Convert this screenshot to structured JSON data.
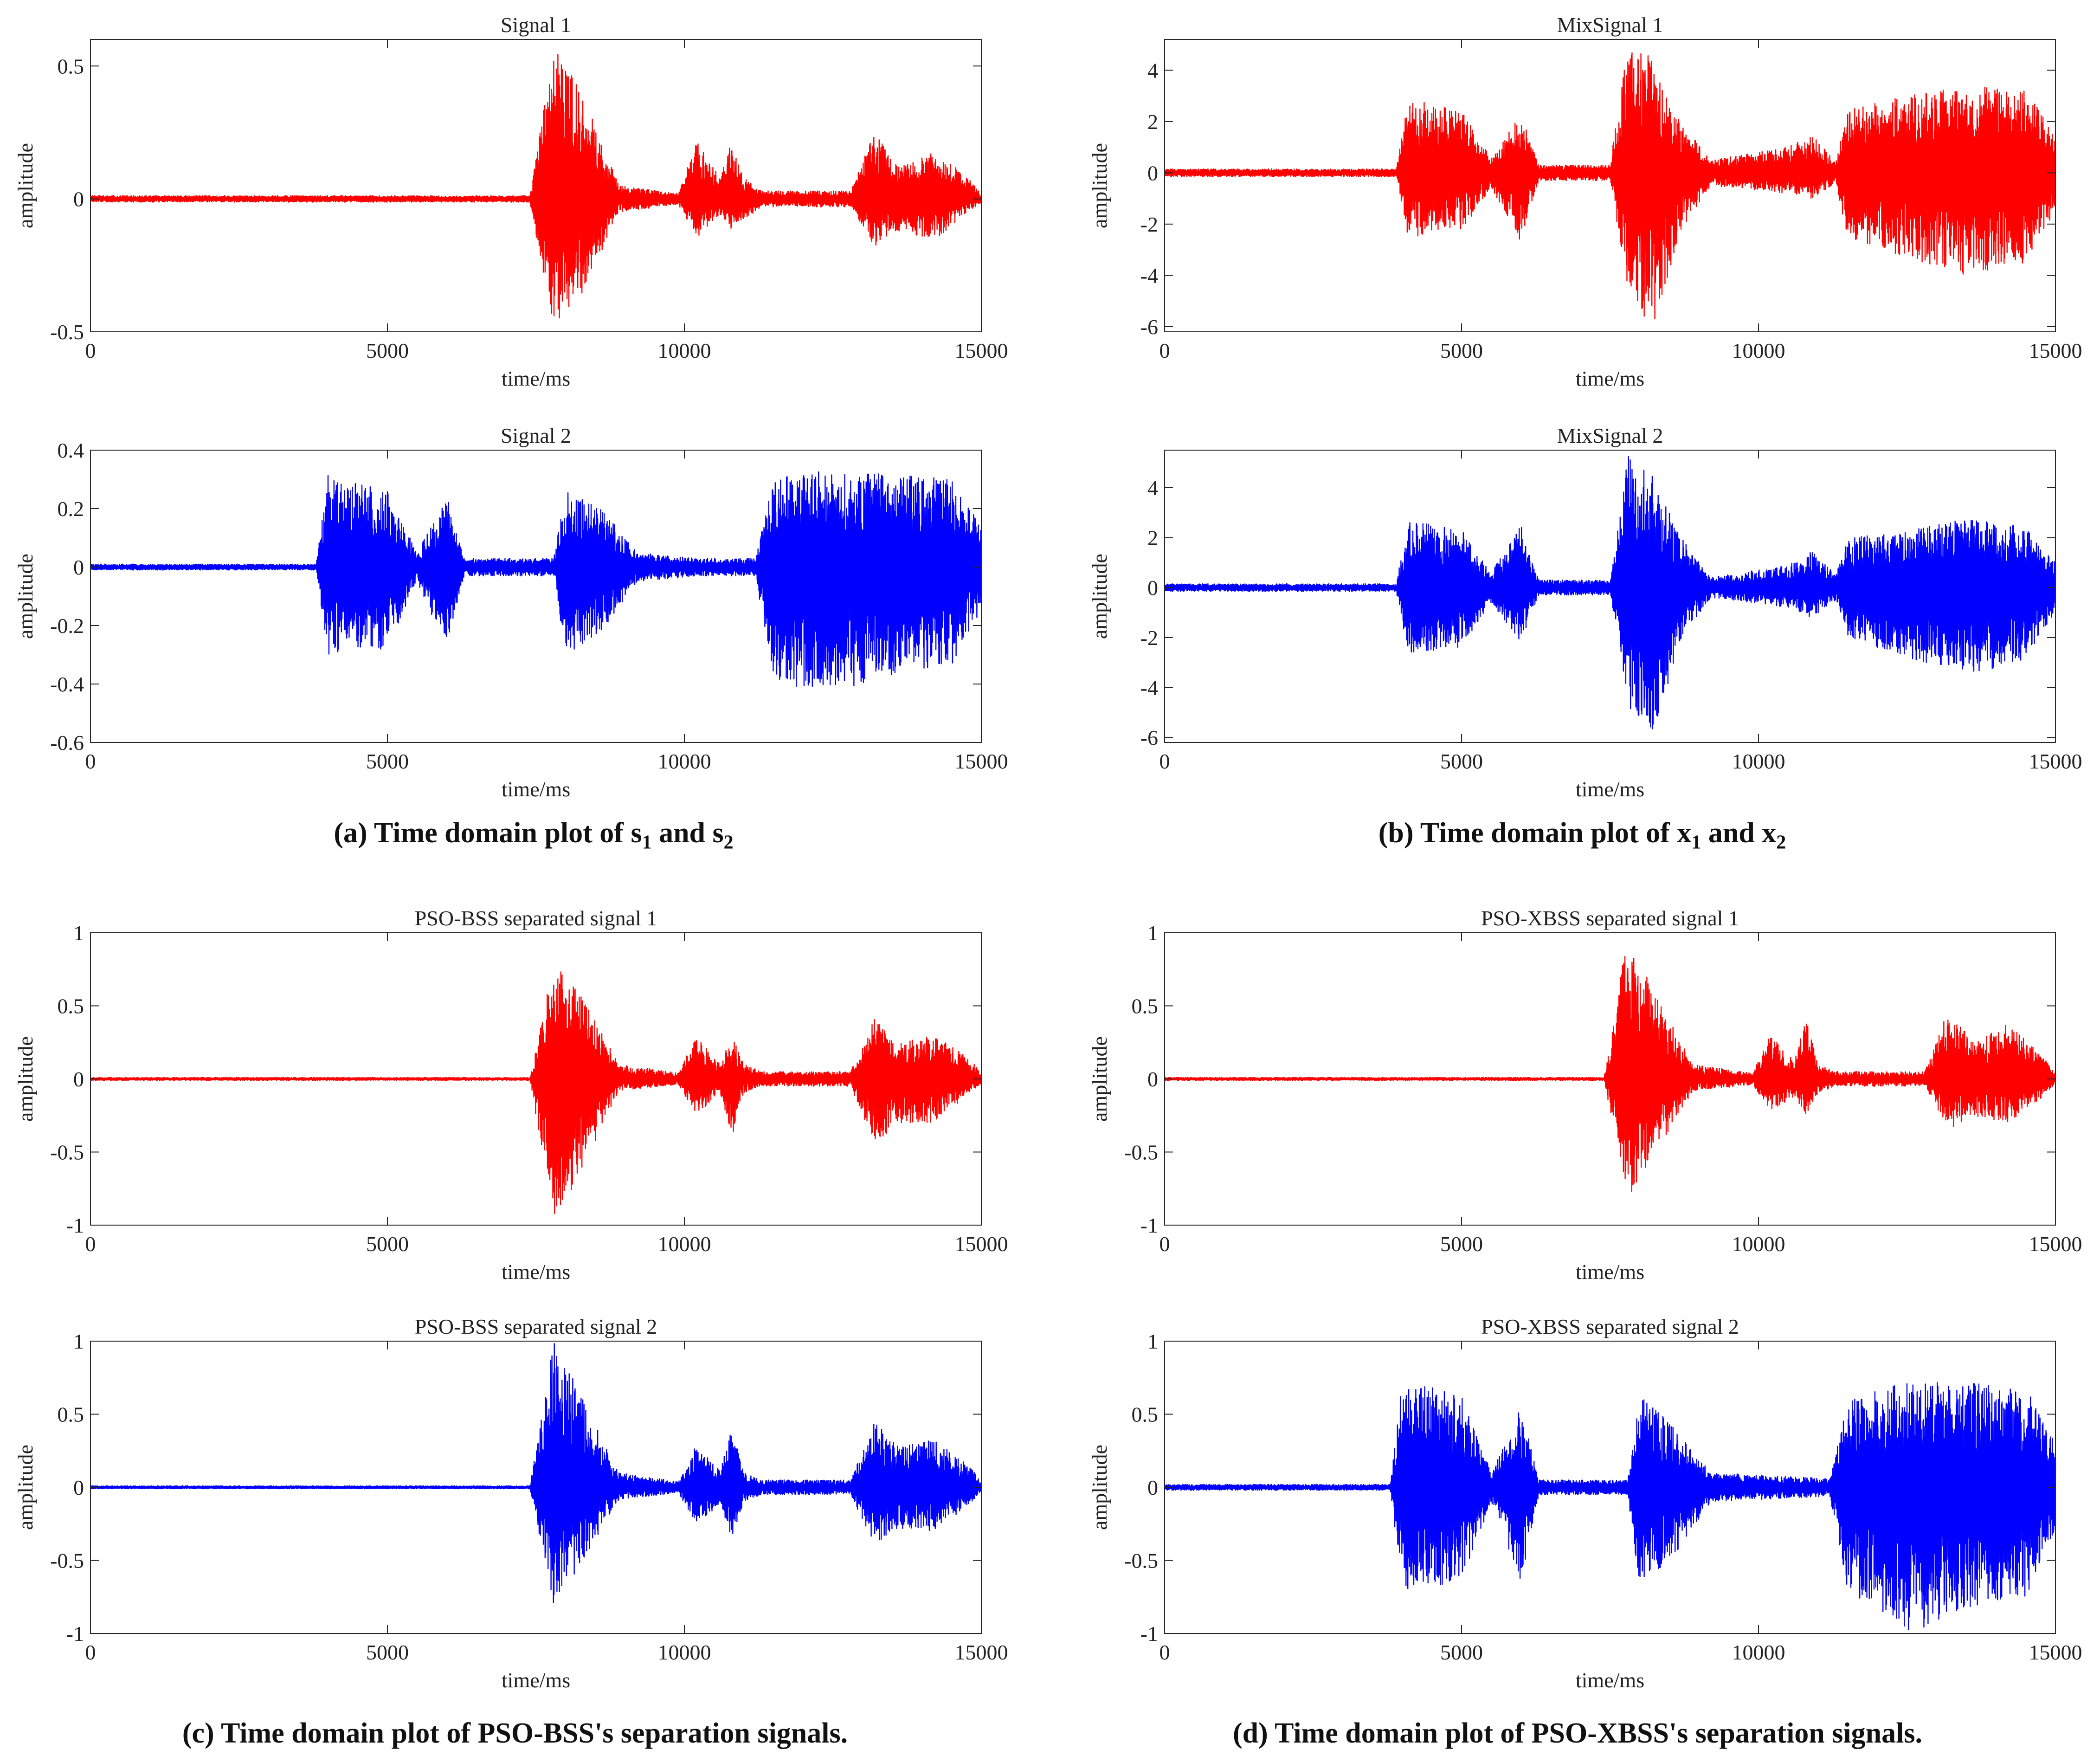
{
  "captions": {
    "a": {
      "pre": "(a) Time domain plot of s",
      "sub1": "1",
      "mid": " and s",
      "sub2": "2",
      "post": ""
    },
    "b": {
      "pre": "(b) Time domain plot of x",
      "sub1": "1",
      "mid": " and x",
      "sub2": "2",
      "post": ""
    },
    "c": "(c) Time domain plot of PSO-BSS's separation signals.",
    "d": "(d) Time domain plot of PSO-XBSS's separation signals."
  },
  "chart_data": [
    {
      "type": "line",
      "title": "Signal 1",
      "xlabel": "time/ms",
      "ylabel": "amplitude",
      "xlim": [
        0,
        15000
      ],
      "ylim": [
        -0.5,
        0.6
      ],
      "color": "#ff0000",
      "xticks": [
        0,
        5000,
        10000,
        15000
      ],
      "yticks": [
        -0.5,
        0,
        0.5
      ],
      "yticklabels": [
        "-0.5",
        "0",
        "0.5"
      ],
      "envelope": [
        [
          0,
          0.012,
          0.012
        ],
        [
          7400,
          0.012,
          0.012
        ],
        [
          7800,
          0.58,
          0.49
        ],
        [
          8300,
          0.4,
          0.35
        ],
        [
          8900,
          0.05,
          0.05
        ],
        [
          9900,
          0.02,
          0.02
        ],
        [
          10200,
          0.22,
          0.15
        ],
        [
          10600,
          0.08,
          0.06
        ],
        [
          10800,
          0.22,
          0.12
        ],
        [
          11000,
          0.08,
          0.08
        ],
        [
          11300,
          0.03,
          0.03
        ],
        [
          12800,
          0.03,
          0.03
        ],
        [
          13200,
          0.25,
          0.18
        ],
        [
          13600,
          0.12,
          0.12
        ],
        [
          14200,
          0.18,
          0.16
        ],
        [
          14800,
          0.08,
          0.04
        ],
        [
          15000,
          0.02,
          0.02
        ]
      ]
    },
    {
      "type": "line",
      "title": "Signal 2",
      "xlabel": "time/ms",
      "ylabel": "amplitude",
      "xlim": [
        0,
        15000
      ],
      "ylim": [
        -0.6,
        0.4
      ],
      "color": "#0000ff",
      "xticks": [
        0,
        5000,
        10000,
        15000
      ],
      "yticks": [
        -0.6,
        -0.4,
        -0.2,
        0,
        0.2,
        0.4
      ],
      "yticklabels": [
        "-0.6",
        "-0.4",
        "-0.2",
        "0",
        "0.2",
        "0.4"
      ],
      "envelope": [
        [
          0,
          0.01,
          0.01
        ],
        [
          3800,
          0.01,
          0.01
        ],
        [
          4000,
          0.32,
          0.3
        ],
        [
          5000,
          0.26,
          0.28
        ],
        [
          5500,
          0.05,
          0.05
        ],
        [
          6000,
          0.25,
          0.28
        ],
        [
          6300,
          0.03,
          0.03
        ],
        [
          7800,
          0.03,
          0.03
        ],
        [
          8000,
          0.27,
          0.3
        ],
        [
          8600,
          0.2,
          0.22
        ],
        [
          9200,
          0.05,
          0.05
        ],
        [
          10200,
          0.03,
          0.03
        ],
        [
          11200,
          0.03,
          0.03
        ],
        [
          11500,
          0.3,
          0.4
        ],
        [
          12500,
          0.34,
          0.42
        ],
        [
          13500,
          0.32,
          0.38
        ],
        [
          14500,
          0.3,
          0.34
        ],
        [
          15000,
          0.15,
          0.15
        ]
      ]
    },
    {
      "type": "line",
      "title": "MixSignal 1",
      "xlabel": "time/ms",
      "ylabel": "amplitude",
      "xlim": [
        0,
        15000
      ],
      "ylim": [
        -6.2,
        5.2
      ],
      "color": "#ff0000",
      "xticks": [
        0,
        5000,
        10000,
        15000
      ],
      "yticks": [
        -6,
        -4,
        -2,
        0,
        2,
        4
      ],
      "yticklabels": [
        "-6",
        "-4",
        "-2",
        "0",
        "2",
        "4"
      ],
      "envelope": [
        [
          0,
          0.15,
          0.15
        ],
        [
          3900,
          0.15,
          0.15
        ],
        [
          4100,
          2.9,
          2.5
        ],
        [
          5000,
          2.4,
          2.3
        ],
        [
          5500,
          0.6,
          0.6
        ],
        [
          6000,
          2.3,
          2.7
        ],
        [
          6300,
          0.3,
          0.3
        ],
        [
          7500,
          0.3,
          0.3
        ],
        [
          7800,
          5.1,
          4.5
        ],
        [
          8200,
          4.5,
          6.2
        ],
        [
          8700,
          2.0,
          2.2
        ],
        [
          9200,
          0.5,
          0.5
        ],
        [
          10500,
          1.0,
          0.8
        ],
        [
          10900,
          1.5,
          1.0
        ],
        [
          11300,
          0.4,
          0.4
        ],
        [
          11500,
          2.5,
          2.5
        ],
        [
          12500,
          3.0,
          3.3
        ],
        [
          13500,
          3.4,
          4.0
        ],
        [
          14500,
          3.2,
          3.5
        ],
        [
          15000,
          1.5,
          1.5
        ]
      ]
    },
    {
      "type": "line",
      "title": "MixSignal 2",
      "xlabel": "time/ms",
      "ylabel": "amplitude",
      "xlim": [
        0,
        15000
      ],
      "ylim": [
        -6.2,
        5.5
      ],
      "color": "#0000ff",
      "xticks": [
        0,
        5000,
        10000,
        15000
      ],
      "yticks": [
        -6,
        -4,
        -2,
        0,
        2,
        4
      ],
      "yticklabels": [
        "-6",
        "-4",
        "-2",
        "0",
        "2",
        "4"
      ],
      "envelope": [
        [
          0,
          0.15,
          0.15
        ],
        [
          3900,
          0.15,
          0.15
        ],
        [
          4100,
          2.7,
          2.6
        ],
        [
          5000,
          2.3,
          2.4
        ],
        [
          5500,
          0.6,
          0.6
        ],
        [
          6000,
          2.5,
          2.2
        ],
        [
          6300,
          0.3,
          0.3
        ],
        [
          7500,
          0.3,
          0.3
        ],
        [
          7800,
          5.3,
          4.8
        ],
        [
          8200,
          4.5,
          6.1
        ],
        [
          8700,
          2.0,
          2.0
        ],
        [
          9200,
          0.4,
          0.4
        ],
        [
          10500,
          0.9,
          0.8
        ],
        [
          10900,
          1.5,
          1.2
        ],
        [
          11300,
          0.5,
          0.5
        ],
        [
          11500,
          2.0,
          2.0
        ],
        [
          12500,
          2.3,
          2.8
        ],
        [
          13500,
          2.8,
          3.5
        ],
        [
          14500,
          2.4,
          2.9
        ],
        [
          15000,
          1.0,
          1.0
        ]
      ]
    },
    {
      "type": "line",
      "title": "PSO-BSS separated signal 1",
      "xlabel": "time/ms",
      "ylabel": "amplitude",
      "xlim": [
        0,
        15000
      ],
      "ylim": [
        -1,
        1
      ],
      "color": "#ff0000",
      "xticks": [
        0,
        5000,
        10000,
        15000
      ],
      "yticks": [
        -1,
        -0.5,
        0,
        0.5,
        1
      ],
      "yticklabels": [
        "-1",
        "-0.5",
        "0",
        "0.5",
        "1"
      ],
      "envelope": [
        [
          0,
          0.01,
          0.01
        ],
        [
          7400,
          0.01,
          0.01
        ],
        [
          7800,
          0.8,
          1.0
        ],
        [
          8300,
          0.55,
          0.6
        ],
        [
          8900,
          0.1,
          0.08
        ],
        [
          9900,
          0.04,
          0.04
        ],
        [
          10200,
          0.3,
          0.25
        ],
        [
          10600,
          0.1,
          0.1
        ],
        [
          10800,
          0.3,
          0.4
        ],
        [
          11000,
          0.1,
          0.1
        ],
        [
          11300,
          0.05,
          0.05
        ],
        [
          12800,
          0.05,
          0.05
        ],
        [
          13200,
          0.42,
          0.45
        ],
        [
          13600,
          0.25,
          0.3
        ],
        [
          14200,
          0.3,
          0.3
        ],
        [
          14800,
          0.15,
          0.1
        ],
        [
          15000,
          0.03,
          0.03
        ]
      ]
    },
    {
      "type": "line",
      "title": "PSO-BSS separated signal 2",
      "xlabel": "time/ms",
      "ylabel": "amplitude",
      "xlim": [
        0,
        15000
      ],
      "ylim": [
        -1,
        1
      ],
      "color": "#0000ff",
      "xticks": [
        0,
        5000,
        10000,
        15000
      ],
      "yticks": [
        -1,
        -0.5,
        0,
        0.5,
        1
      ],
      "yticklabels": [
        "-1",
        "-0.5",
        "0",
        "0.5",
        "1"
      ],
      "envelope": [
        [
          0,
          0.01,
          0.01
        ],
        [
          7400,
          0.01,
          0.01
        ],
        [
          7800,
          1.0,
          0.8
        ],
        [
          8300,
          0.6,
          0.5
        ],
        [
          8900,
          0.1,
          0.08
        ],
        [
          9900,
          0.04,
          0.04
        ],
        [
          10200,
          0.3,
          0.25
        ],
        [
          10600,
          0.12,
          0.12
        ],
        [
          10800,
          0.4,
          0.35
        ],
        [
          11000,
          0.1,
          0.1
        ],
        [
          11300,
          0.05,
          0.05
        ],
        [
          12800,
          0.05,
          0.05
        ],
        [
          13200,
          0.45,
          0.4
        ],
        [
          13600,
          0.28,
          0.28
        ],
        [
          14200,
          0.33,
          0.3
        ],
        [
          14800,
          0.15,
          0.12
        ],
        [
          15000,
          0.03,
          0.03
        ]
      ]
    },
    {
      "type": "line",
      "title": "PSO-XBSS separated signal 1",
      "xlabel": "time/ms",
      "ylabel": "amplitude",
      "xlim": [
        0,
        15000
      ],
      "ylim": [
        -1,
        1
      ],
      "color": "#ff0000",
      "xticks": [
        0,
        5000,
        10000,
        15000
      ],
      "yticks": [
        -1,
        -0.5,
        0,
        0.5,
        1
      ],
      "yticklabels": [
        "-1",
        "-0.5",
        "0",
        "0.5",
        "1"
      ],
      "envelope": [
        [
          0,
          0.01,
          0.01
        ],
        [
          7400,
          0.01,
          0.01
        ],
        [
          7800,
          1.0,
          0.82
        ],
        [
          8300,
          0.55,
          0.5
        ],
        [
          8900,
          0.1,
          0.08
        ],
        [
          9900,
          0.04,
          0.04
        ],
        [
          10200,
          0.3,
          0.22
        ],
        [
          10600,
          0.12,
          0.12
        ],
        [
          10800,
          0.42,
          0.25
        ],
        [
          11000,
          0.1,
          0.1
        ],
        [
          11300,
          0.05,
          0.05
        ],
        [
          12800,
          0.05,
          0.05
        ],
        [
          13200,
          0.48,
          0.35
        ],
        [
          13600,
          0.25,
          0.25
        ],
        [
          14200,
          0.38,
          0.3
        ],
        [
          14800,
          0.15,
          0.12
        ],
        [
          15000,
          0.03,
          0.03
        ]
      ]
    },
    {
      "type": "line",
      "title": "PSO-XBSS separated signal 2",
      "xlabel": "time/ms",
      "ylabel": "amplitude",
      "xlim": [
        0,
        15000
      ],
      "ylim": [
        -1,
        1
      ],
      "color": "#0000ff",
      "xticks": [
        0,
        5000,
        10000,
        15000
      ],
      "yticks": [
        -1,
        -0.5,
        0,
        0.5,
        1
      ],
      "yticklabels": [
        "-1",
        "-0.5",
        "0",
        "0.5",
        "1"
      ],
      "envelope": [
        [
          0,
          0.02,
          0.02
        ],
        [
          3800,
          0.02,
          0.02
        ],
        [
          4000,
          0.75,
          0.7
        ],
        [
          5000,
          0.62,
          0.65
        ],
        [
          5500,
          0.1,
          0.1
        ],
        [
          6000,
          0.55,
          0.65
        ],
        [
          6300,
          0.05,
          0.05
        ],
        [
          7800,
          0.05,
          0.05
        ],
        [
          8000,
          0.65,
          0.7
        ],
        [
          8600,
          0.4,
          0.45
        ],
        [
          9200,
          0.1,
          0.1
        ],
        [
          10200,
          0.08,
          0.08
        ],
        [
          11200,
          0.06,
          0.06
        ],
        [
          11500,
          0.6,
          0.7
        ],
        [
          12500,
          0.72,
          1.0
        ],
        [
          13500,
          0.72,
          0.85
        ],
        [
          14500,
          0.68,
          0.75
        ],
        [
          15000,
          0.3,
          0.3
        ]
      ]
    }
  ]
}
